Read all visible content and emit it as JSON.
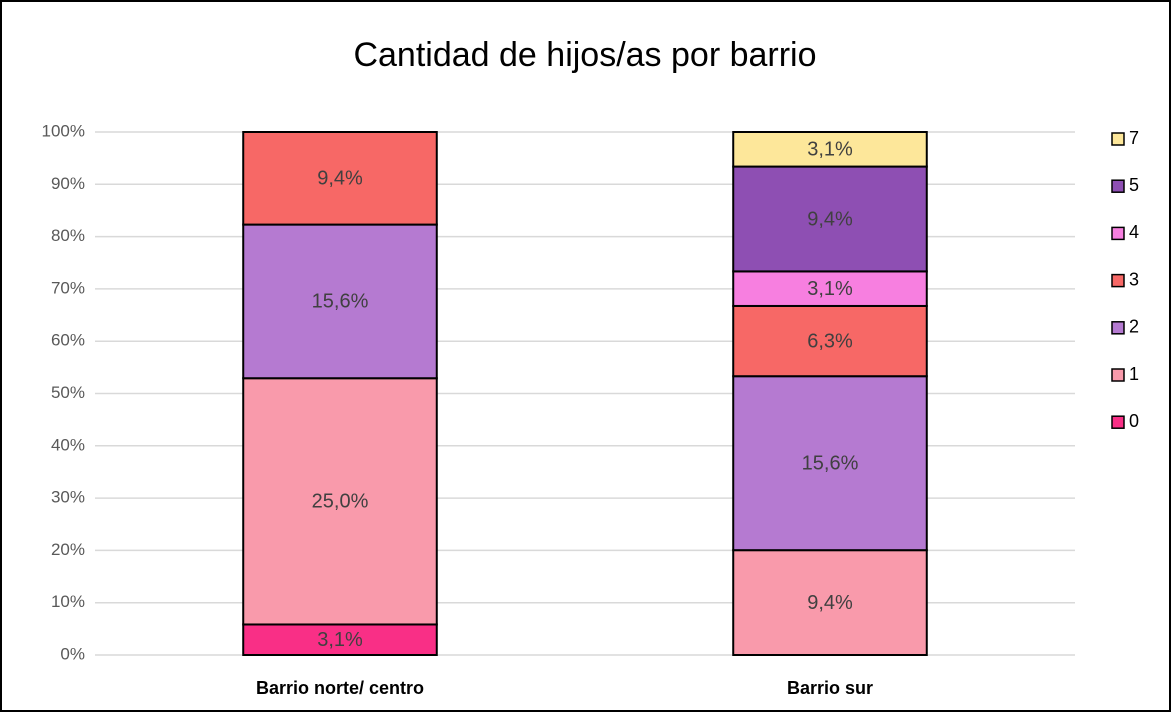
{
  "chart_data": {
    "type": "bar",
    "stacking": "percent",
    "title": "Cantidad de hijos/as por barrio",
    "categories": [
      "Barrio norte/ centro",
      "Barrio sur"
    ],
    "series": [
      {
        "name": "0",
        "color": "#f92f86",
        "values": [
          3.1,
          null
        ],
        "value_labels": [
          "3,1%",
          null
        ]
      },
      {
        "name": "1",
        "color": "#f99aab",
        "values": [
          25.0,
          9.4
        ],
        "value_labels": [
          "25,0%",
          "9,4%"
        ]
      },
      {
        "name": "2",
        "color": "#b57ad1",
        "values": [
          15.6,
          15.6
        ],
        "value_labels": [
          "15,6%",
          "15,6%"
        ]
      },
      {
        "name": "3",
        "color": "#f76866",
        "values": [
          9.4,
          6.3
        ],
        "value_labels": [
          "9,4%",
          "6,3%"
        ]
      },
      {
        "name": "4",
        "color": "#f77fe0",
        "values": [
          null,
          3.1
        ],
        "value_labels": [
          null,
          "3,1%"
        ]
      },
      {
        "name": "5",
        "color": "#8e4fb3",
        "values": [
          null,
          9.4
        ],
        "value_labels": [
          null,
          "9,4%"
        ]
      },
      {
        "name": "7",
        "color": "#fde79a",
        "values": [
          null,
          3.1
        ],
        "value_labels": [
          null,
          "3,1%"
        ]
      }
    ],
    "ylim": [
      0,
      100
    ],
    "yticks": [
      {
        "value": 0,
        "label": "0%"
      },
      {
        "value": 10,
        "label": "10%"
      },
      {
        "value": 20,
        "label": "20%"
      },
      {
        "value": 30,
        "label": "30%"
      },
      {
        "value": 40,
        "label": "40%"
      },
      {
        "value": 50,
        "label": "50%"
      },
      {
        "value": 60,
        "label": "60%"
      },
      {
        "value": 70,
        "label": "70%"
      },
      {
        "value": 80,
        "label": "80%"
      },
      {
        "value": 90,
        "label": "90%"
      },
      {
        "value": 100,
        "label": "100%"
      }
    ],
    "grid": true,
    "legend": "right"
  }
}
